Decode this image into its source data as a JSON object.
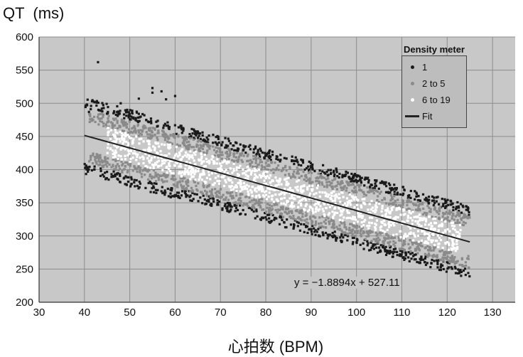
{
  "chart_data": {
    "type": "scatter",
    "ylabel": "QT  (ms)",
    "xlabel": "心拍数 (BPM)",
    "xlim": [
      30,
      135
    ],
    "ylim": [
      200,
      600
    ],
    "xticks": [
      30,
      40,
      50,
      60,
      70,
      80,
      90,
      100,
      110,
      120,
      130
    ],
    "yticks": [
      200,
      250,
      300,
      350,
      400,
      450,
      500,
      550,
      600
    ],
    "grid": true,
    "legend": {
      "title": "Density meter",
      "placement": "top-right",
      "items": [
        {
          "label": "1",
          "color": "#1a1a1a",
          "kind": "dot"
        },
        {
          "label": "2 to 5",
          "color": "#8a8a8a",
          "kind": "dot"
        },
        {
          "label": "6 to 19",
          "color": "#ffffff",
          "kind": "dot"
        },
        {
          "label": "Fit",
          "color": "#222222",
          "kind": "line"
        }
      ]
    },
    "fit": {
      "slope": -1.8894,
      "intercept": 527.11,
      "x_range": [
        40,
        125
      ],
      "equation": "y = −1.8894x + 527.11"
    },
    "density_bands": [
      {
        "label": "6 to 19",
        "center_offset": 0,
        "half_width_ms": 22,
        "color": "#ffffff"
      },
      {
        "label": "2 to 5",
        "inner_offset_ms": 22,
        "outer_offset_ms": 40,
        "color": "#8a8a8a"
      },
      {
        "label": "1",
        "inner_offset_ms": 40,
        "outer_offset_ms": 55,
        "color": "#1a1a1a"
      }
    ],
    "outliers": [
      {
        "x": 43,
        "y": 562
      },
      {
        "x": 41,
        "y": 487
      },
      {
        "x": 55,
        "y": 523
      },
      {
        "x": 55,
        "y": 516
      },
      {
        "x": 57,
        "y": 518
      },
      {
        "x": 60,
        "y": 511
      },
      {
        "x": 52,
        "y": 507
      },
      {
        "x": 58,
        "y": 506
      },
      {
        "x": 48,
        "y": 500
      }
    ],
    "plot_bg": "#c8c8c8"
  }
}
